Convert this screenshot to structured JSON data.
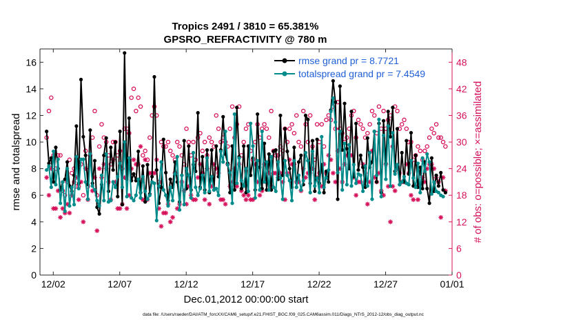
{
  "chart_data": {
    "type": "line",
    "title": "Tropics 2491 / 3810 = 65.381%",
    "subtitle": "GPSRO_REFRACTIVITY @ 780 m",
    "xlabel": "Dec.01,2012 00:00:00 start",
    "ylabel": "rmse and totalspread",
    "ylabel_right": "# of obs: o=possible; ×=assimilated",
    "footnote": "data file: /Users/raeder/DAI/ATM_forcXX/CAM6_setup/f.e21.FHIST_BGC.f09_025.CAM6assim.011/Diags_NTrS_2012-12/obs_diag_output.nc",
    "x_tick_labels": [
      "12/02",
      "12/07",
      "12/12",
      "12/17",
      "12/22",
      "12/27",
      "01/01"
    ],
    "x_tick_days": [
      1,
      6,
      11,
      16,
      21,
      26,
      31
    ],
    "xlim": [
      0,
      31
    ],
    "ylim": [
      0,
      17
    ],
    "yticks": [
      0,
      2,
      4,
      6,
      8,
      10,
      12,
      14,
      16
    ],
    "ylim_right": [
      0,
      51
    ],
    "yticks_right": [
      0,
      6,
      12,
      18,
      24,
      30,
      36,
      42,
      48
    ],
    "legend": [
      {
        "name": "rmse grand pr = 8.7721"
      },
      {
        "name": "totalspread grand pr = 7.4549"
      }
    ],
    "legend_location": "top-right",
    "colors": {
      "rmse": "#000000",
      "spread": "#008b8b",
      "obs": "#d6105a",
      "legend_text": "#1f5fd6"
    },
    "series": [
      {
        "name": "rmse",
        "values": [
          10.8,
          8.4,
          8.8,
          7.0,
          9.6,
          8.0,
          6.4,
          7.0,
          7.2,
          8.5,
          6.7,
          6.3,
          7.5,
          11.2,
          6.9,
          14.7,
          10.4,
          9.0,
          6.8,
          10.9,
          6.9,
          8.6,
          5.1,
          4.6,
          6.8,
          9.0,
          10.3,
          6.3,
          9.6,
          7.9,
          10.0,
          5.9,
          10.8,
          5.3,
          16.7,
          7.2,
          11.8,
          7.1,
          7.6,
          7.1,
          9.3,
          6.2,
          8.2,
          5.5,
          8.3,
          6.1,
          7.4,
          14.9,
          7.9,
          5.4,
          6.6,
          10.2,
          7.7,
          5.6,
          7.2,
          6.6,
          8.5,
          7.0,
          5.5,
          7.5,
          10.1,
          6.5,
          9.7,
          6.4,
          8.3,
          7.8,
          12.2,
          6.6,
          8.9,
          6.4,
          9.4,
          6.2,
          9.4,
          6.4,
          9.7,
          7.4,
          9.4,
          11.9,
          9.1,
          8.4,
          6.2,
          9.7,
          6.4,
          12.6,
          8.9,
          6.5,
          9.7,
          6.2,
          9.7,
          7.5,
          8.8,
          6.4,
          12.1,
          8.1,
          6.5,
          9.9,
          6.4,
          9.1,
          6.4,
          9.3,
          9.4,
          7.2,
          12.0,
          7.5,
          11.0,
          9.3,
          8.0,
          6.6,
          9.6,
          6.6,
          8.5,
          9.0,
          6.8,
          12.0,
          11.7,
          6.9,
          10.1,
          6.3,
          10.2,
          6.9,
          8.3,
          6.2,
          7.8,
          7.0,
          12.4,
          14.6,
          13.0,
          5.7,
          14.2,
          9.4,
          12.9,
          9.5,
          8.0,
          12.3,
          7.4,
          11.4,
          7.9,
          9.0,
          8.1,
          6.6,
          10.3,
          8.1,
          8.5,
          10.8,
          7.0,
          11.4,
          6.2,
          11.6,
          8.4,
          12.3,
          10.4,
          12.6,
          7.8,
          11.0,
          6.8,
          9.2,
          7.0,
          10.1,
          7.6,
          10.7,
          6.7,
          9.0,
          6.6,
          8.1,
          6.5,
          8.5,
          6.5,
          5.4,
          8.8,
          6.3,
          7.5,
          6.7,
          7.7,
          6.4,
          6.2
        ]
      },
      {
        "name": "totalspread",
        "values": [
          7.9,
          8.2,
          6.6,
          9.3,
          6.8,
          8.7,
          5.4,
          7.0,
          4.8,
          8.0,
          5.2,
          6.6,
          5.3,
          8.9,
          6.5,
          8.7,
          8.7,
          7.0,
          5.7,
          9.1,
          6.7,
          6.4,
          5.6,
          5.2,
          7.5,
          5.6,
          9.1,
          5.5,
          5.6,
          7.0,
          6.6,
          7.4,
          8.4,
          6.6,
          10.0,
          5.9,
          8.8,
          5.8,
          5.6,
          6.0,
          7.2,
          5.8,
          7.4,
          6.3,
          5.7,
          6.0,
          7.0,
          6.9,
          4.1,
          6.7,
          8.5,
          6.4,
          6.0,
          5.2,
          6.6,
          5.6,
          7.6,
          8.9,
          4.9,
          7.5,
          5.3,
          8.0,
          7.5,
          5.8,
          9.2,
          6.6,
          6.0,
          6.5,
          7.5,
          6.2,
          8.8,
          6.3,
          7.4,
          6.4,
          6.5,
          6.0,
          9.3,
          8.5,
          10.8,
          8.3,
          7.7,
          5.4,
          12.1,
          6.9,
          8.8,
          7.1,
          6.7,
          8.0,
          6.3,
          11.4,
          9.7,
          5.8,
          8.6,
          6.4,
          10.8,
          7.0,
          8.5,
          6.4,
          8.9,
          6.6,
          6.3,
          8.5,
          7.3,
          5.7,
          8.6,
          7.5,
          7.1,
          5.6,
          8.6,
          6.6,
          7.5,
          6.4,
          7.1,
          9.2,
          8.6,
          6.2,
          9.3,
          6.7,
          7.3,
          6.2,
          10.4,
          6.6,
          7.3,
          7.9,
          12.3,
          13.3,
          11.5,
          7.7,
          10.8,
          6.4,
          9.9,
          6.8,
          9.8,
          6.7,
          8.3,
          6.9,
          7.6,
          7.5,
          6.3,
          8.2,
          6.7,
          9.2,
          5.7,
          10.8,
          7.5,
          11.7,
          5.9,
          10.5,
          7.2,
          11.2,
          6.7,
          10.7,
          7.6,
          8.3,
          6.8,
          7.0,
          7.4,
          6.9,
          6.8,
          8.6,
          7.3,
          6.6,
          8.4,
          6.2,
          8.8,
          7.8,
          9.1,
          8.5,
          6.1,
          7.0,
          6.3,
          6.2,
          6.0,
          5.9
        ]
      },
      {
        "name": "obs possible",
        "marker": "o",
        "values": [
          31,
          37,
          40,
          27,
          24,
          27,
          27,
          19,
          18,
          21,
          26,
          23,
          24,
          20,
          20,
          25,
          18,
          28,
          20,
          27,
          31,
          37,
          18,
          29,
          34,
          31,
          30,
          27,
          25,
          30,
          30,
          27,
          28,
          24,
          33,
          33,
          32,
          40,
          42,
          37,
          40,
          38,
          27,
          28,
          26,
          31,
          36,
          38,
          36,
          21,
          30,
          29,
          29,
          30,
          28,
          27,
          26,
          30,
          29,
          27,
          25,
          33,
          30,
          27,
          30,
          26,
          31,
          32,
          28,
          30,
          27,
          31,
          30,
          29,
          36,
          33,
          30,
          31,
          30,
          29,
          33,
          38,
          31,
          34,
          38,
          27,
          30,
          33,
          34,
          28,
          26,
          30,
          34,
          31,
          33,
          34,
          33,
          31,
          37,
          28,
          27,
          27,
          29,
          28,
          33,
          30,
          33,
          34,
          32,
          36,
          30,
          29,
          37,
          34,
          30,
          36,
          29,
          26,
          34,
          30,
          34,
          29,
          35,
          36,
          35,
          38,
          33,
          39,
          33,
          32,
          30,
          31,
          33,
          36,
          37,
          31,
          35,
          34,
          33,
          31,
          32,
          34,
          37,
          36,
          32,
          38,
          33,
          37,
          33,
          35,
          36,
          29,
          38,
          37,
          33,
          34,
          35,
          33,
          30,
          30,
          26,
          27,
          29,
          28,
          26,
          28,
          29,
          31,
          33,
          32,
          34,
          31,
          31,
          30,
          29
        ]
      },
      {
        "name": "obs assimilated",
        "marker": "*",
        "values": [
          22,
          18,
          24,
          15,
          15,
          19,
          13,
          15,
          14,
          16,
          14,
          18,
          21,
          22,
          17,
          21,
          12,
          24,
          17,
          25,
          19,
          22,
          10,
          24,
          22,
          25,
          24,
          21,
          17,
          26,
          21,
          15,
          15,
          16,
          22,
          15,
          18,
          24,
          26,
          25,
          25,
          29,
          17,
          26,
          17,
          23,
          23,
          23,
          26,
          15,
          11,
          14,
          14,
          16,
          12,
          13,
          23,
          15,
          16,
          21,
          19,
          16,
          20,
          18,
          17,
          17,
          22,
          25,
          23,
          17,
          24,
          16,
          20,
          25,
          24,
          23,
          17,
          17,
          16,
          25,
          20,
          21,
          24,
          20,
          25,
          19,
          18,
          17,
          18,
          17,
          17,
          25,
          21,
          18,
          19,
          25,
          21,
          23,
          20,
          23,
          23,
          22,
          23,
          21,
          17,
          23,
          26,
          25,
          25,
          21,
          21,
          19,
          24,
          22,
          23,
          23,
          24,
          17,
          22,
          23,
          20,
          25,
          23,
          27,
          26,
          23,
          21,
          28,
          24,
          21,
          25,
          27,
          27,
          27,
          22,
          18,
          21,
          21,
          25,
          23,
          16,
          21,
          28,
          22,
          21,
          23,
          19,
          18,
          25,
          20,
          12,
          20,
          19,
          24,
          23,
          21,
          21,
          25,
          23,
          18,
          17,
          20,
          17,
          23,
          22,
          21,
          24,
          25,
          25,
          24,
          22,
          21,
          13,
          22,
          19
        ]
      }
    ]
  }
}
